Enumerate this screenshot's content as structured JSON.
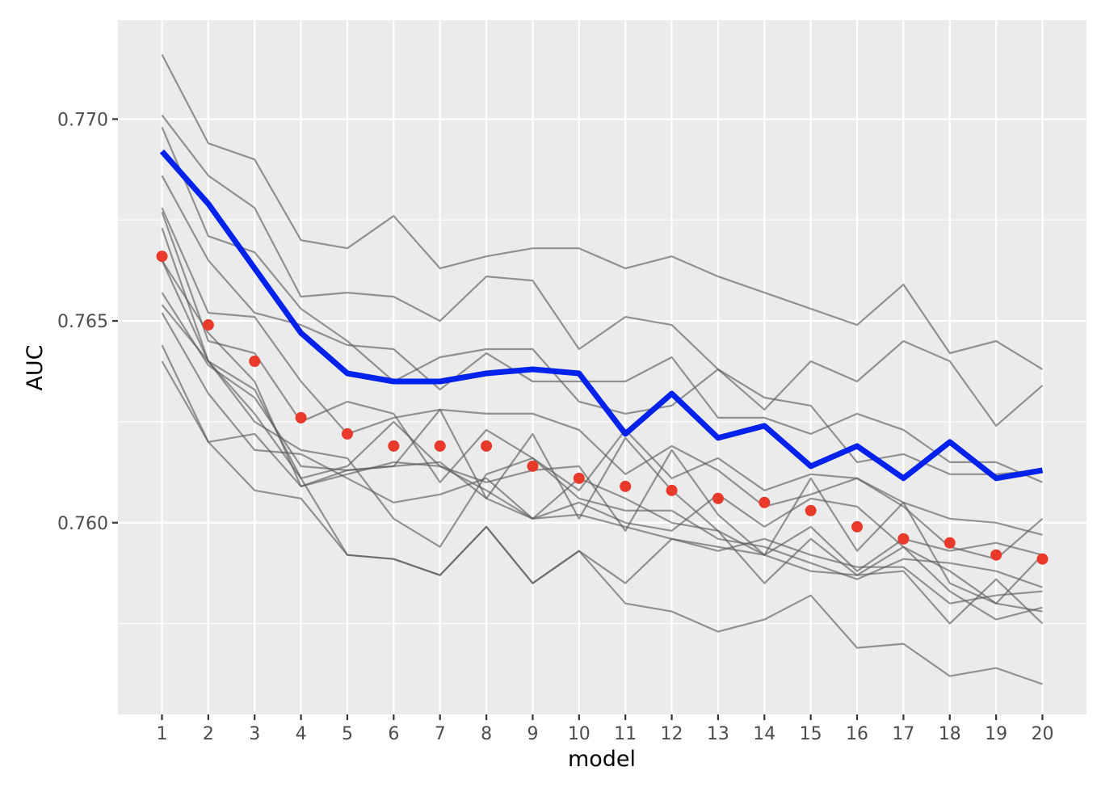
{
  "chart_data": {
    "type": "line",
    "xlabel": "model",
    "ylabel": "AUC",
    "x": [
      1,
      2,
      3,
      4,
      5,
      6,
      7,
      8,
      9,
      10,
      11,
      12,
      13,
      14,
      15,
      16,
      17,
      18,
      19,
      20
    ],
    "xlim": [
      0.05,
      20.95
    ],
    "ylim": [
      0.75525,
      0.77245
    ],
    "y_major_ticks": [
      0.76,
      0.765,
      0.77
    ],
    "y_tick_labels": [
      "0.760",
      "0.765",
      "0.770"
    ],
    "y_minor_ticks": [
      0.7575,
      0.7625,
      0.7675
    ],
    "grid": true,
    "colors": {
      "panel": "#ebebeb",
      "grid": "#ffffff",
      "individual_lines": "#595959",
      "highlight_line": "#0022ee",
      "points": "#e8392a"
    },
    "series": [
      {
        "role": "individual",
        "values": [
          0.7716,
          0.7694,
          0.769,
          0.767,
          0.7668,
          0.7676,
          0.7663,
          0.7666,
          0.7668,
          0.7668,
          0.7663,
          0.7666,
          0.7661,
          0.7657,
          0.7653,
          0.7649,
          0.7659,
          0.7642,
          0.7645,
          0.7638
        ]
      },
      {
        "role": "individual",
        "values": [
          0.7701,
          0.7686,
          0.7678,
          0.7656,
          0.7657,
          0.7656,
          0.765,
          0.7661,
          0.766,
          0.7643,
          0.7651,
          0.7649,
          0.7638,
          0.7628,
          0.764,
          0.7635,
          0.7645,
          0.764,
          0.7624,
          0.7634
        ]
      },
      {
        "role": "individual",
        "values": [
          0.7698,
          0.7671,
          0.7667,
          0.7653,
          0.7645,
          0.7635,
          0.7641,
          0.7643,
          0.7643,
          0.763,
          0.7627,
          0.7629,
          0.7638,
          0.7631,
          0.7629,
          0.7615,
          0.7617,
          0.7612,
          0.7612,
          0.7613
        ]
      },
      {
        "role": "individual",
        "values": [
          0.7686,
          0.7665,
          0.7652,
          0.7649,
          0.7644,
          0.7643,
          0.7633,
          0.7642,
          0.7635,
          0.7635,
          0.7635,
          0.7641,
          0.7626,
          0.7626,
          0.7622,
          0.7627,
          0.7623,
          0.7615,
          0.7615,
          0.761
        ]
      },
      {
        "role": "individual",
        "values": [
          0.7678,
          0.7652,
          0.7651,
          0.7635,
          0.7622,
          0.7626,
          0.7628,
          0.7627,
          0.7627,
          0.7623,
          0.7612,
          0.7619,
          0.7613,
          0.7604,
          0.7607,
          0.7611,
          0.7604,
          0.7594,
          0.7591,
          0.7601
        ]
      },
      {
        "role": "individual",
        "values": [
          0.7677,
          0.7645,
          0.7642,
          0.7625,
          0.763,
          0.7627,
          0.761,
          0.7623,
          0.7616,
          0.7608,
          0.7623,
          0.7611,
          0.7616,
          0.7608,
          0.7612,
          0.7611,
          0.7605,
          0.7601,
          0.76,
          0.7597
        ]
      },
      {
        "role": "individual",
        "values": [
          0.7673,
          0.764,
          0.7627,
          0.7611,
          0.7614,
          0.7625,
          0.7614,
          0.761,
          0.7613,
          0.7614,
          0.7598,
          0.7618,
          0.7602,
          0.7592,
          0.7599,
          0.7588,
          0.7596,
          0.7593,
          0.7595,
          0.7592
        ]
      },
      {
        "role": "individual",
        "values": [
          0.7665,
          0.7647,
          0.7635,
          0.7609,
          0.7612,
          0.7615,
          0.7614,
          0.7608,
          0.7601,
          0.7611,
          0.7606,
          0.76,
          0.7598,
          0.7592,
          0.7611,
          0.7593,
          0.7605,
          0.7585,
          0.758,
          0.7592
        ]
      },
      {
        "role": "individual",
        "values": [
          0.7657,
          0.7639,
          0.7631,
          0.7614,
          0.7613,
          0.7614,
          0.7615,
          0.7606,
          0.7601,
          0.7605,
          0.76,
          0.7598,
          0.7607,
          0.7599,
          0.7606,
          0.7604,
          0.7594,
          0.7588,
          0.758,
          0.7578
        ]
      },
      {
        "role": "individual",
        "values": [
          0.7654,
          0.764,
          0.7625,
          0.7618,
          0.7616,
          0.7601,
          0.7594,
          0.7612,
          0.7616,
          0.7606,
          0.7603,
          0.7603,
          0.7596,
          0.7594,
          0.759,
          0.7586,
          0.7591,
          0.759,
          0.7588,
          0.7584
        ]
      },
      {
        "role": "individual",
        "values": [
          0.7652,
          0.7632,
          0.7618,
          0.7617,
          0.7611,
          0.7605,
          0.7607,
          0.7611,
          0.7601,
          0.7602,
          0.7599,
          0.7596,
          0.7593,
          0.7596,
          0.7592,
          0.7589,
          0.7589,
          0.758,
          0.7582,
          0.7583
        ]
      },
      {
        "role": "individual",
        "values": [
          0.7644,
          0.762,
          0.7622,
          0.7609,
          0.7613,
          0.7614,
          0.7628,
          0.7606,
          0.7622,
          0.7601,
          0.7621,
          0.7608,
          0.7598,
          0.7585,
          0.7596,
          0.7587,
          0.7588,
          0.7575,
          0.7586,
          0.7575
        ]
      },
      {
        "role": "individual",
        "values": [
          0.764,
          0.762,
          0.7608,
          0.7606,
          0.7592,
          0.7591,
          0.7587,
          0.7599,
          0.7585,
          0.7593,
          0.7585,
          0.7596,
          0.7594,
          0.7592,
          0.7588,
          0.7587,
          0.7594,
          0.7583,
          0.7576,
          0.7579
        ]
      },
      {
        "role": "individual",
        "values": [
          0.7665,
          0.764,
          0.7633,
          0.7611,
          0.7592,
          0.7591,
          0.7587,
          0.7599,
          0.7585,
          0.7593,
          0.758,
          0.7578,
          0.7573,
          0.7576,
          0.7582,
          0.7569,
          0.757,
          0.7562,
          0.7564,
          0.756
        ]
      },
      {
        "role": "highlight",
        "values": [
          0.7692,
          0.7679,
          0.7663,
          0.7647,
          0.7637,
          0.7635,
          0.7635,
          0.7637,
          0.7638,
          0.7637,
          0.7622,
          0.7632,
          0.7621,
          0.7624,
          0.7614,
          0.7619,
          0.7611,
          0.762,
          0.7611,
          0.7613
        ]
      },
      {
        "role": "points",
        "values": [
          0.7666,
          0.7649,
          0.764,
          0.7626,
          0.7622,
          0.7619,
          0.7619,
          0.7619,
          0.7614,
          0.7611,
          0.7609,
          0.7608,
          0.7606,
          0.7605,
          0.7603,
          0.7599,
          0.7596,
          0.7595,
          0.7592,
          0.7591
        ]
      }
    ]
  }
}
